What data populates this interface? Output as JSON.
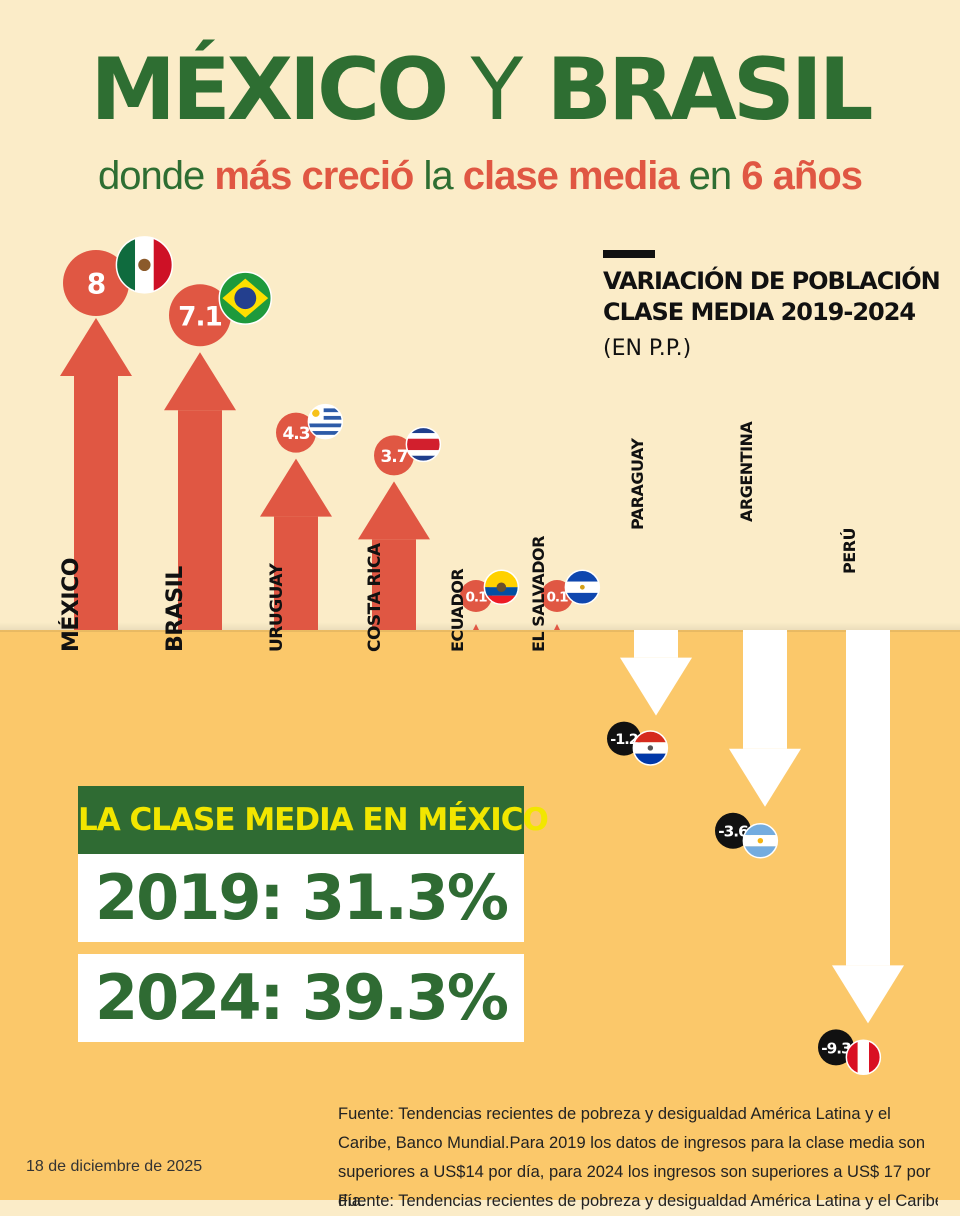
{
  "title": {
    "part1": "MÉXICO",
    "part2": " Y ",
    "part3": "BRASIL"
  },
  "subtitle": {
    "w1": "donde ",
    "w2": "más creció",
    "w3": " la ",
    "w4": "clase media",
    "w5": " en ",
    "w6": "6 años"
  },
  "legend": {
    "title": "VARIACIÓN DE POBLACIÓN CLASE MEDIA 2019-2024",
    "unit": "(EN P.P.)"
  },
  "colors": {
    "positive": "#E05743",
    "negative_arrow": "#FFFFFF",
    "negative_circle": "#111111",
    "title_green": "#2E6E32",
    "highlight_red": "#E05743",
    "header_yellow": "#F2E600"
  },
  "chart_data": {
    "type": "bar",
    "title": "VARIACIÓN DE POBLACIÓN CLASE MEDIA 2019-2024",
    "ylabel": "(EN P.P.)",
    "categories": [
      "MÉXICO",
      "BRASIL",
      "URUGUAY",
      "COSTA RICA",
      "ECUADOR",
      "EL SALVADOR",
      "PARAGUAY",
      "ARGENTINA",
      "PERÚ"
    ],
    "values": [
      8,
      7.1,
      4.3,
      3.7,
      0.1,
      0.1,
      -1.2,
      -3.6,
      -9.3
    ],
    "value_labels": [
      "8",
      "7.1",
      "4.3",
      "3.7",
      "0.1",
      "0.1",
      "-1.2",
      "-3.6",
      "-9.3"
    ],
    "flags": [
      "mexico-flag",
      "brazil-flag",
      "uruguay-flag",
      "costa-rica-flag",
      "ecuador-flag",
      "el-salvador-flag",
      "paraguay-flag",
      "argentina-flag",
      "peru-flag"
    ],
    "grid": false,
    "legend": "none"
  },
  "mexico_box": {
    "header": "LA CLASE MEDIA EN MÉXICO",
    "row1": "2019: 31.3%",
    "row2": "2024: 39.3%"
  },
  "date": "18 de diciembre de 2025",
  "source": "Fuente: Tendencias recientes de pobreza y desigualdad América Latina y el Caribe, Banco Mundial.Para 2019 los datos de ingresos para la clase media son superiores a US$14 por día, para 2024 los ingresos son superiores a US$ 17 por día.",
  "source_repeat": "Fuente: Tendencias recientes de pobreza y desigualdad América Latina y el Caribe,"
}
